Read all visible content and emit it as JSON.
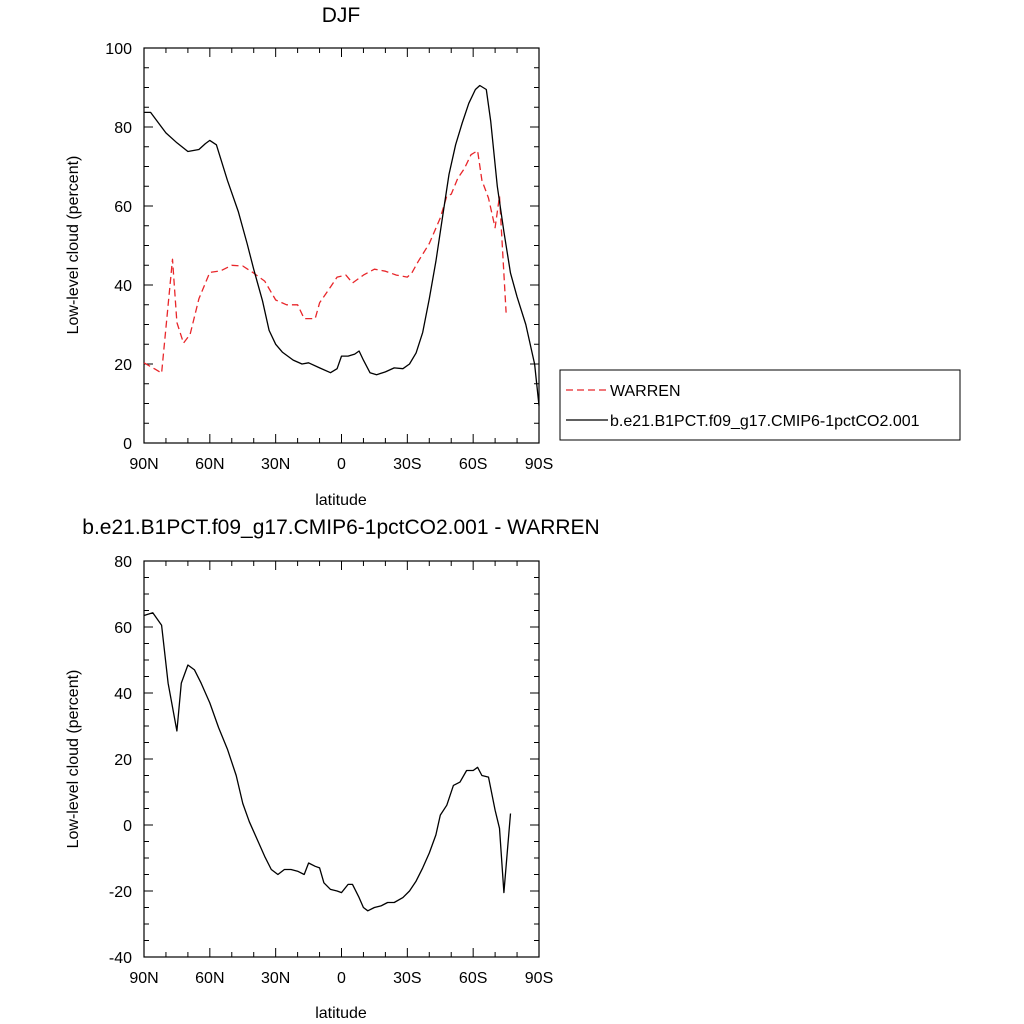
{
  "chart_data": [
    {
      "type": "line",
      "title": "DJF",
      "xlabel": "latitude",
      "ylabel": "Low-level cloud (percent)",
      "xlim": [
        90,
        -90
      ],
      "ylim": [
        0,
        100
      ],
      "x_ticks": [
        {
          "value": 90,
          "label": "90N"
        },
        {
          "value": 60,
          "label": "60N"
        },
        {
          "value": 30,
          "label": "30N"
        },
        {
          "value": 0,
          "label": "0"
        },
        {
          "value": -30,
          "label": "30S"
        },
        {
          "value": -60,
          "label": "60S"
        },
        {
          "value": -90,
          "label": "90S"
        }
      ],
      "y_ticks": [
        0,
        20,
        40,
        60,
        80,
        100
      ],
      "legend_position": "right",
      "series": [
        {
          "name": "WARREN",
          "color": "#e8262a",
          "dash": "dashed",
          "points": [
            [
              90,
              20.3
            ],
            [
              85,
              18.7
            ],
            [
              82,
              17.7
            ],
            [
              77,
              46.5
            ],
            [
              75,
              30.5
            ],
            [
              72,
              25.3
            ],
            [
              69,
              27.5
            ],
            [
              65,
              36.5
            ],
            [
              60,
              43.2
            ],
            [
              55,
              43.6
            ],
            [
              50,
              45.0
            ],
            [
              45,
              44.8
            ],
            [
              40,
              43.0
            ],
            [
              35,
              41.0
            ],
            [
              30,
              36.2
            ],
            [
              25,
              35.0
            ],
            [
              20,
              35.0
            ],
            [
              17,
              31.5
            ],
            [
              12,
              31.5
            ],
            [
              10,
              35.5
            ],
            [
              5,
              39.5
            ],
            [
              2,
              42.0
            ],
            [
              -2,
              42.5
            ],
            [
              -5,
              40.5
            ],
            [
              -10,
              42.5
            ],
            [
              -15,
              44.0
            ],
            [
              -20,
              43.5
            ],
            [
              -25,
              42.5
            ],
            [
              -30,
              42.0
            ],
            [
              -32,
              43.0
            ],
            [
              -35,
              46.0
            ],
            [
              -40,
              50.5
            ],
            [
              -45,
              57.0
            ],
            [
              -48,
              62.5
            ],
            [
              -50,
              63.0
            ],
            [
              -53,
              67.0
            ],
            [
              -56,
              69.5
            ],
            [
              -59,
              73.0
            ],
            [
              -62,
              74.0
            ],
            [
              -64,
              66.5
            ],
            [
              -67,
              62.0
            ],
            [
              -70,
              54.5
            ],
            [
              -72,
              62.5
            ],
            [
              -75,
              33.0
            ]
          ]
        },
        {
          "name": "b.e21.B1PCT.f09_g17.CMIP6-1pctCO2.001",
          "color": "#000000",
          "dash": "solid",
          "points": [
            [
              90,
              83.7
            ],
            [
              87,
              83.7
            ],
            [
              80,
              78.5
            ],
            [
              75,
              76.0
            ],
            [
              70,
              73.8
            ],
            [
              65,
              74.3
            ],
            [
              62,
              75.8
            ],
            [
              60,
              76.6
            ],
            [
              57,
              75.5
            ],
            [
              52,
              66.5
            ],
            [
              47,
              58.5
            ],
            [
              43,
              50.5
            ],
            [
              40,
              44.0
            ],
            [
              36,
              36.0
            ],
            [
              33,
              28.5
            ],
            [
              30,
              25.0
            ],
            [
              27,
              23.0
            ],
            [
              22,
              21.0
            ],
            [
              18,
              20.0
            ],
            [
              15,
              20.3
            ],
            [
              10,
              19.0
            ],
            [
              5,
              17.8
            ],
            [
              2,
              18.8
            ],
            [
              0,
              22.0
            ],
            [
              -3,
              22.0
            ],
            [
              -6,
              22.5
            ],
            [
              -8,
              23.3
            ],
            [
              -10,
              21.0
            ],
            [
              -13,
              17.8
            ],
            [
              -16,
              17.3
            ],
            [
              -20,
              18.0
            ],
            [
              -24,
              19.0
            ],
            [
              -28,
              18.8
            ],
            [
              -31,
              20.0
            ],
            [
              -34,
              22.8
            ],
            [
              -37,
              28.0
            ],
            [
              -40,
              36.5
            ],
            [
              -43,
              46.0
            ],
            [
              -46,
              57.0
            ],
            [
              -49,
              68.0
            ],
            [
              -52,
              75.5
            ],
            [
              -55,
              81.0
            ],
            [
              -58,
              86.0
            ],
            [
              -61,
              89.5
            ],
            [
              -63,
              90.5
            ],
            [
              -66,
              89.5
            ],
            [
              -68,
              81.5
            ],
            [
              -71,
              65.0
            ],
            [
              -74,
              53.5
            ],
            [
              -77,
              43.0
            ],
            [
              -80,
              37.0
            ],
            [
              -84,
              30.0
            ],
            [
              -88,
              20.0
            ],
            [
              -90,
              9.5
            ]
          ]
        }
      ]
    },
    {
      "type": "line",
      "title": "b.e21.B1PCT.f09_g17.CMIP6-1pctCO2.001 - WARREN",
      "xlabel": "latitude",
      "ylabel": "Low-level cloud (percent)",
      "xlim": [
        90,
        -90
      ],
      "ylim": [
        -40,
        80
      ],
      "x_ticks": [
        {
          "value": 90,
          "label": "90N"
        },
        {
          "value": 60,
          "label": "60N"
        },
        {
          "value": 30,
          "label": "30N"
        },
        {
          "value": 0,
          "label": "0"
        },
        {
          "value": -30,
          "label": "30S"
        },
        {
          "value": -60,
          "label": "60S"
        },
        {
          "value": -90,
          "label": "90S"
        }
      ],
      "y_ticks": [
        -40,
        -20,
        0,
        20,
        40,
        60,
        80
      ],
      "series": [
        {
          "color": "#000000",
          "dash": "solid",
          "points": [
            [
              90,
              63.5
            ],
            [
              86,
              64.3
            ],
            [
              82,
              60.5
            ],
            [
              79,
              43.0
            ],
            [
              75,
              28.5
            ],
            [
              73,
              43.0
            ],
            [
              70,
              48.5
            ],
            [
              67,
              47.0
            ],
            [
              64,
              43.0
            ],
            [
              60,
              37.0
            ],
            [
              56,
              29.5
            ],
            [
              52,
              23.0
            ],
            [
              48,
              15.0
            ],
            [
              45,
              6.5
            ],
            [
              42,
              1.0
            ],
            [
              38,
              -5.0
            ],
            [
              35,
              -9.5
            ],
            [
              32,
              -13.5
            ],
            [
              29,
              -15.0
            ],
            [
              26,
              -13.5
            ],
            [
              23,
              -13.5
            ],
            [
              20,
              -14.0
            ],
            [
              17,
              -15.0
            ],
            [
              15,
              -11.5
            ],
            [
              12,
              -12.5
            ],
            [
              10,
              -13.0
            ],
            [
              8,
              -17.5
            ],
            [
              5,
              -19.5
            ],
            [
              2,
              -20.0
            ],
            [
              0,
              -20.5
            ],
            [
              -3,
              -18.0
            ],
            [
              -5,
              -18.0
            ],
            [
              -8,
              -22.0
            ],
            [
              -10,
              -25.0
            ],
            [
              -12,
              -26.0
            ],
            [
              -15,
              -25.0
            ],
            [
              -18,
              -24.5
            ],
            [
              -21,
              -23.5
            ],
            [
              -24,
              -23.5
            ],
            [
              -28,
              -22.0
            ],
            [
              -31,
              -20.0
            ],
            [
              -34,
              -17.0
            ],
            [
              -37,
              -13.0
            ],
            [
              -40,
              -8.5
            ],
            [
              -43,
              -3.0
            ],
            [
              -45,
              3.0
            ],
            [
              -48,
              6.0
            ],
            [
              -51,
              12.0
            ],
            [
              -54,
              13.0
            ],
            [
              -57,
              16.5
            ],
            [
              -60,
              16.5
            ],
            [
              -62,
              17.5
            ],
            [
              -64,
              15.0
            ],
            [
              -67,
              14.5
            ],
            [
              -70,
              4.5
            ],
            [
              -72,
              -1.0
            ],
            [
              -74,
              -20.5
            ],
            [
              -77,
              3.5
            ]
          ]
        }
      ]
    }
  ]
}
